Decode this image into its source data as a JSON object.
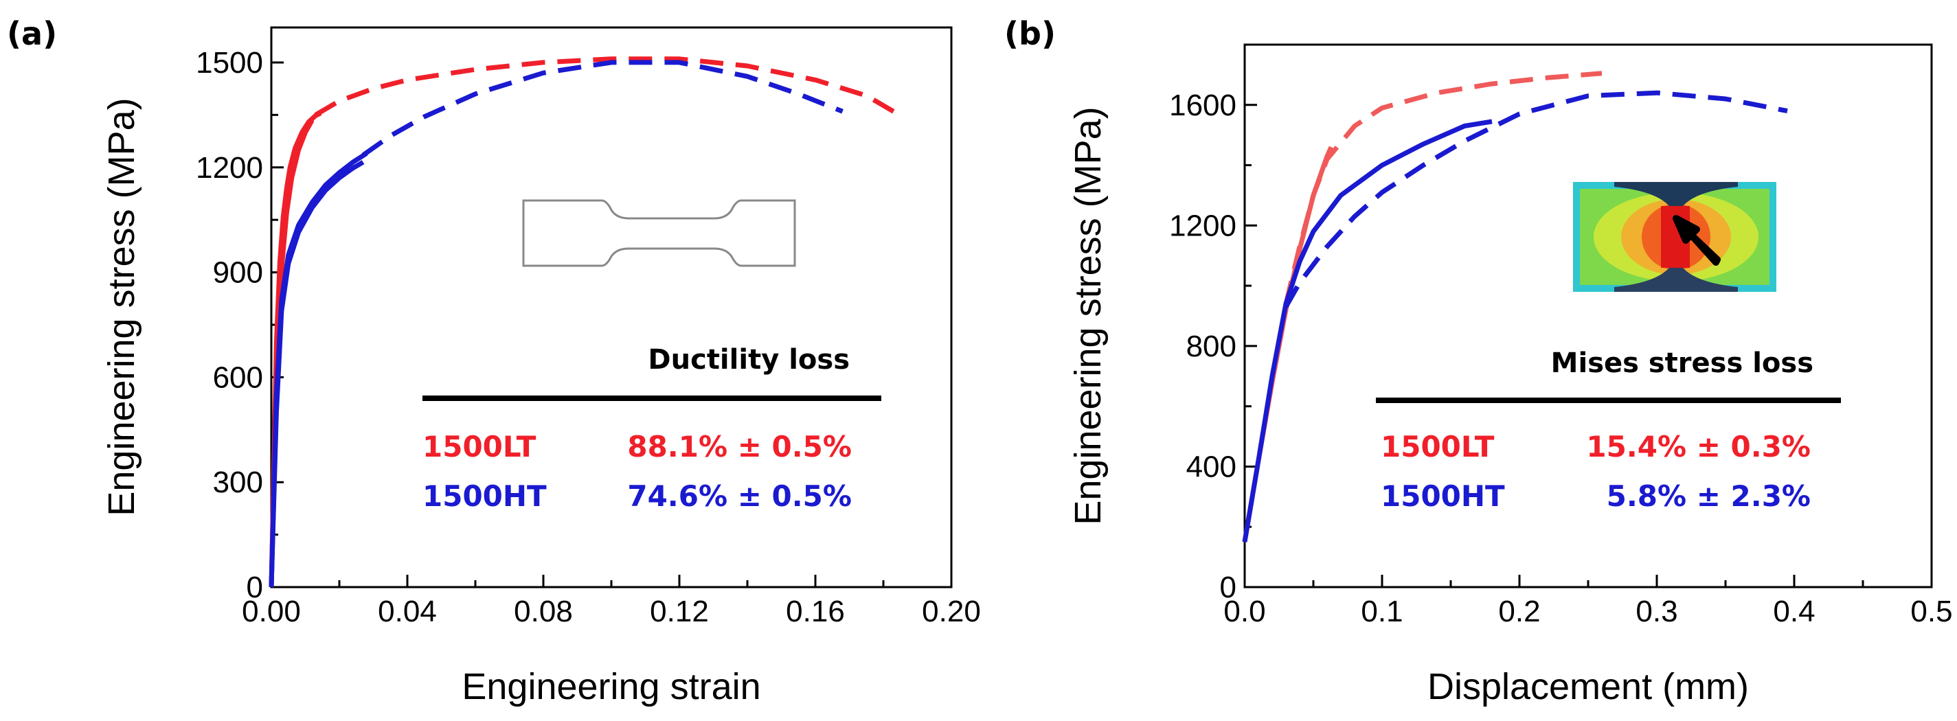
{
  "colors": {
    "red": "#f0202a",
    "blue": "#1a1ad0",
    "black": "#000000",
    "lightred": "#f05a5a"
  },
  "chart_data": [
    {
      "type": "line",
      "panel_label": "(a)",
      "xlabel": "Engineering strain",
      "ylabel": "Engineering stress (MPa)",
      "xlim": [
        0,
        0.2
      ],
      "ylim": [
        0,
        1600
      ],
      "xticks": [
        0.0,
        0.04,
        0.08,
        0.12,
        0.16,
        0.2
      ],
      "xtick_labels": [
        "0.00",
        "0.04",
        "0.08",
        "0.12",
        "0.16",
        "0.20"
      ],
      "yticks": [
        0,
        300,
        600,
        900,
        1200,
        1500
      ],
      "ytick_labels": [
        "0",
        "300",
        "600",
        "900",
        "1200",
        "1500"
      ],
      "series": [
        {
          "name": "1500LT solid",
          "color": "red",
          "dash": false,
          "x": [
            0.0,
            0.0015,
            0.0025,
            0.0035,
            0.0045,
            0.0055,
            0.007,
            0.009,
            0.011,
            0.013,
            0.0145
          ],
          "y": [
            0,
            700,
            930,
            1060,
            1140,
            1200,
            1255,
            1300,
            1330,
            1348,
            1355
          ]
        },
        {
          "name": "1500LT solid 2",
          "color": "red",
          "dash": false,
          "x": [
            0.0,
            0.0015,
            0.003,
            0.0045,
            0.006,
            0.008,
            0.01,
            0.012
          ],
          "y": [
            0,
            640,
            910,
            1070,
            1170,
            1250,
            1300,
            1335
          ]
        },
        {
          "name": "1500HT solid",
          "color": "blue",
          "dash": false,
          "x": [
            0.0,
            0.0015,
            0.003,
            0.005,
            0.008,
            0.012,
            0.016,
            0.02,
            0.024,
            0.028
          ],
          "y": [
            0,
            550,
            820,
            950,
            1035,
            1100,
            1150,
            1185,
            1215,
            1240
          ]
        },
        {
          "name": "1500HT solid 2",
          "color": "blue",
          "dash": false,
          "x": [
            0.0,
            0.0015,
            0.003,
            0.005,
            0.008,
            0.012,
            0.016,
            0.02,
            0.024,
            0.027
          ],
          "y": [
            0,
            500,
            790,
            925,
            1015,
            1085,
            1135,
            1170,
            1198,
            1215
          ]
        },
        {
          "name": "1500LT dashed",
          "color": "red",
          "dash": true,
          "x": [
            0.013,
            0.02,
            0.03,
            0.04,
            0.06,
            0.08,
            0.1,
            0.12,
            0.14,
            0.16,
            0.175,
            0.183
          ],
          "y": [
            1350,
            1390,
            1425,
            1450,
            1480,
            1500,
            1510,
            1510,
            1490,
            1450,
            1405,
            1360
          ]
        },
        {
          "name": "1500HT dashed",
          "color": "blue",
          "dash": true,
          "x": [
            0.027,
            0.035,
            0.045,
            0.06,
            0.08,
            0.1,
            0.12,
            0.14,
            0.155,
            0.168
          ],
          "y": [
            1235,
            1290,
            1345,
            1410,
            1470,
            1500,
            1500,
            1460,
            1410,
            1360
          ]
        }
      ],
      "legend": {
        "title": "Ductility loss",
        "rows": [
          {
            "name": "1500LT",
            "value": "88.1% ± 0.5%",
            "color": "red"
          },
          {
            "name": "1500HT",
            "value": "74.6% ± 0.5%",
            "color": "blue"
          }
        ]
      },
      "inset": "dog-bone specimen"
    },
    {
      "type": "line",
      "panel_label": "(b)",
      "xlabel": "Displacement (mm)",
      "ylabel": "Engineering stress (MPa)",
      "xlim": [
        0,
        0.5
      ],
      "ylim": [
        0,
        1800
      ],
      "xticks": [
        0.0,
        0.1,
        0.2,
        0.3,
        0.4,
        0.5
      ],
      "xtick_labels": [
        "0.0",
        "0.1",
        "0.2",
        "0.3",
        "0.4",
        "0.5"
      ],
      "yticks": [
        0,
        400,
        800,
        1200,
        1600
      ],
      "ytick_labels": [
        "0",
        "400",
        "800",
        "1200",
        "1600"
      ],
      "series": [
        {
          "name": "1500LT solid",
          "color": "lightred",
          "dash": false,
          "x": [
            0.0,
            0.01,
            0.02,
            0.03,
            0.04,
            0.05,
            0.06,
            0.063
          ],
          "y": [
            150,
            420,
            680,
            920,
            1120,
            1300,
            1430,
            1460
          ]
        },
        {
          "name": "1500LT dashed",
          "color": "lightred",
          "dash": true,
          "x": [
            0.03,
            0.04,
            0.05,
            0.06,
            0.08,
            0.1,
            0.14,
            0.18,
            0.22,
            0.26
          ],
          "y": [
            940,
            1130,
            1300,
            1420,
            1530,
            1590,
            1640,
            1670,
            1690,
            1705
          ]
        },
        {
          "name": "1500HT solid",
          "color": "blue",
          "dash": false,
          "x": [
            0.0,
            0.01,
            0.02,
            0.03,
            0.04,
            0.05,
            0.07,
            0.1,
            0.13,
            0.16,
            0.18
          ],
          "y": [
            150,
            420,
            700,
            940,
            1080,
            1180,
            1300,
            1400,
            1470,
            1530,
            1545
          ]
        },
        {
          "name": "1500HT dashed",
          "color": "blue",
          "dash": true,
          "x": [
            0.03,
            0.04,
            0.06,
            0.08,
            0.1,
            0.13,
            0.16,
            0.2,
            0.25,
            0.3,
            0.35,
            0.395
          ],
          "y": [
            930,
            1010,
            1130,
            1230,
            1310,
            1400,
            1480,
            1570,
            1630,
            1640,
            1620,
            1580
          ]
        }
      ],
      "legend": {
        "title": "Mises stress loss",
        "rows": [
          {
            "name": "1500LT",
            "value": "15.4% ± 0.3%",
            "color": "red"
          },
          {
            "name": "1500HT",
            "value": "5.8% ± 2.3%",
            "color": "blue"
          }
        ]
      },
      "inset": "FE Mises stress contour with arrow"
    }
  ]
}
